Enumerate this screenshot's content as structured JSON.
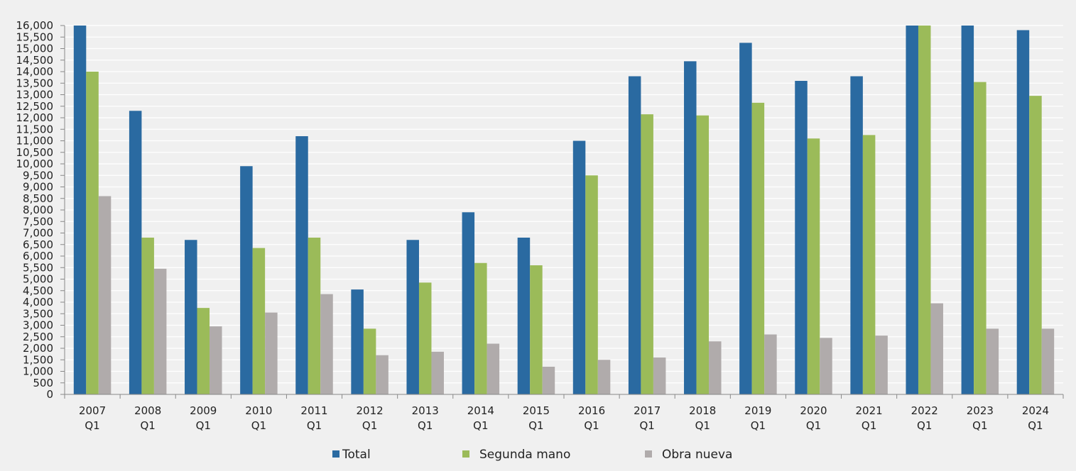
{
  "chart_data": {
    "type": "bar",
    "categories": [
      [
        "2007",
        "Q1"
      ],
      [
        "2008",
        "Q1"
      ],
      [
        "2009",
        "Q1"
      ],
      [
        "2010",
        "Q1"
      ],
      [
        "2011",
        "Q1"
      ],
      [
        "2012",
        "Q1"
      ],
      [
        "2013",
        "Q1"
      ],
      [
        "2014",
        "Q1"
      ],
      [
        "2015",
        "Q1"
      ],
      [
        "2016",
        "Q1"
      ],
      [
        "2017",
        "Q1"
      ],
      [
        "2018",
        "Q1"
      ],
      [
        "2019",
        "Q1"
      ],
      [
        "2020",
        "Q1"
      ],
      [
        "2021",
        "Q1"
      ],
      [
        "2022",
        "Q1"
      ],
      [
        "2023",
        "Q1"
      ],
      [
        "2024",
        "Q1"
      ]
    ],
    "series": [
      {
        "name": "Total",
        "color": "#2a6aa1",
        "values": [
          16000,
          12300,
          6700,
          9900,
          11200,
          4550,
          6700,
          7900,
          6800,
          11000,
          13800,
          14450,
          15250,
          13600,
          13800,
          16000,
          16000,
          15800
        ]
      },
      {
        "name": "Segunda mano",
        "color": "#9bbb59",
        "values": [
          14000,
          6800,
          3750,
          6350,
          6800,
          2850,
          4850,
          5700,
          5600,
          9500,
          12150,
          12100,
          12650,
          11100,
          11250,
          16000,
          13550,
          12950
        ]
      },
      {
        "name": "Obra nueva",
        "color": "#b0abab",
        "values": [
          8600,
          5450,
          2950,
          3550,
          4350,
          1700,
          1850,
          2200,
          1200,
          1500,
          1600,
          2300,
          2600,
          2450,
          2550,
          3950,
          2850,
          2850
        ]
      }
    ],
    "ylim": [
      0,
      16000
    ],
    "yticks": [
      "0",
      "500",
      "1,000",
      "1,500",
      "2,000",
      "2,500",
      "3,000",
      "3,500",
      "4,000",
      "4,500",
      "5,000",
      "5,500",
      "6,000",
      "6,500",
      "7,000",
      "7,500",
      "8,000",
      "8,500",
      "9,000",
      "9,500",
      "10,000",
      "10,500",
      "11,000",
      "11,500",
      "12,000",
      "12,500",
      "13,000",
      "13,500",
      "14,000",
      "14,500",
      "15,000",
      "15,500",
      "16,000"
    ],
    "grid": true,
    "legend": "bottom-center"
  }
}
